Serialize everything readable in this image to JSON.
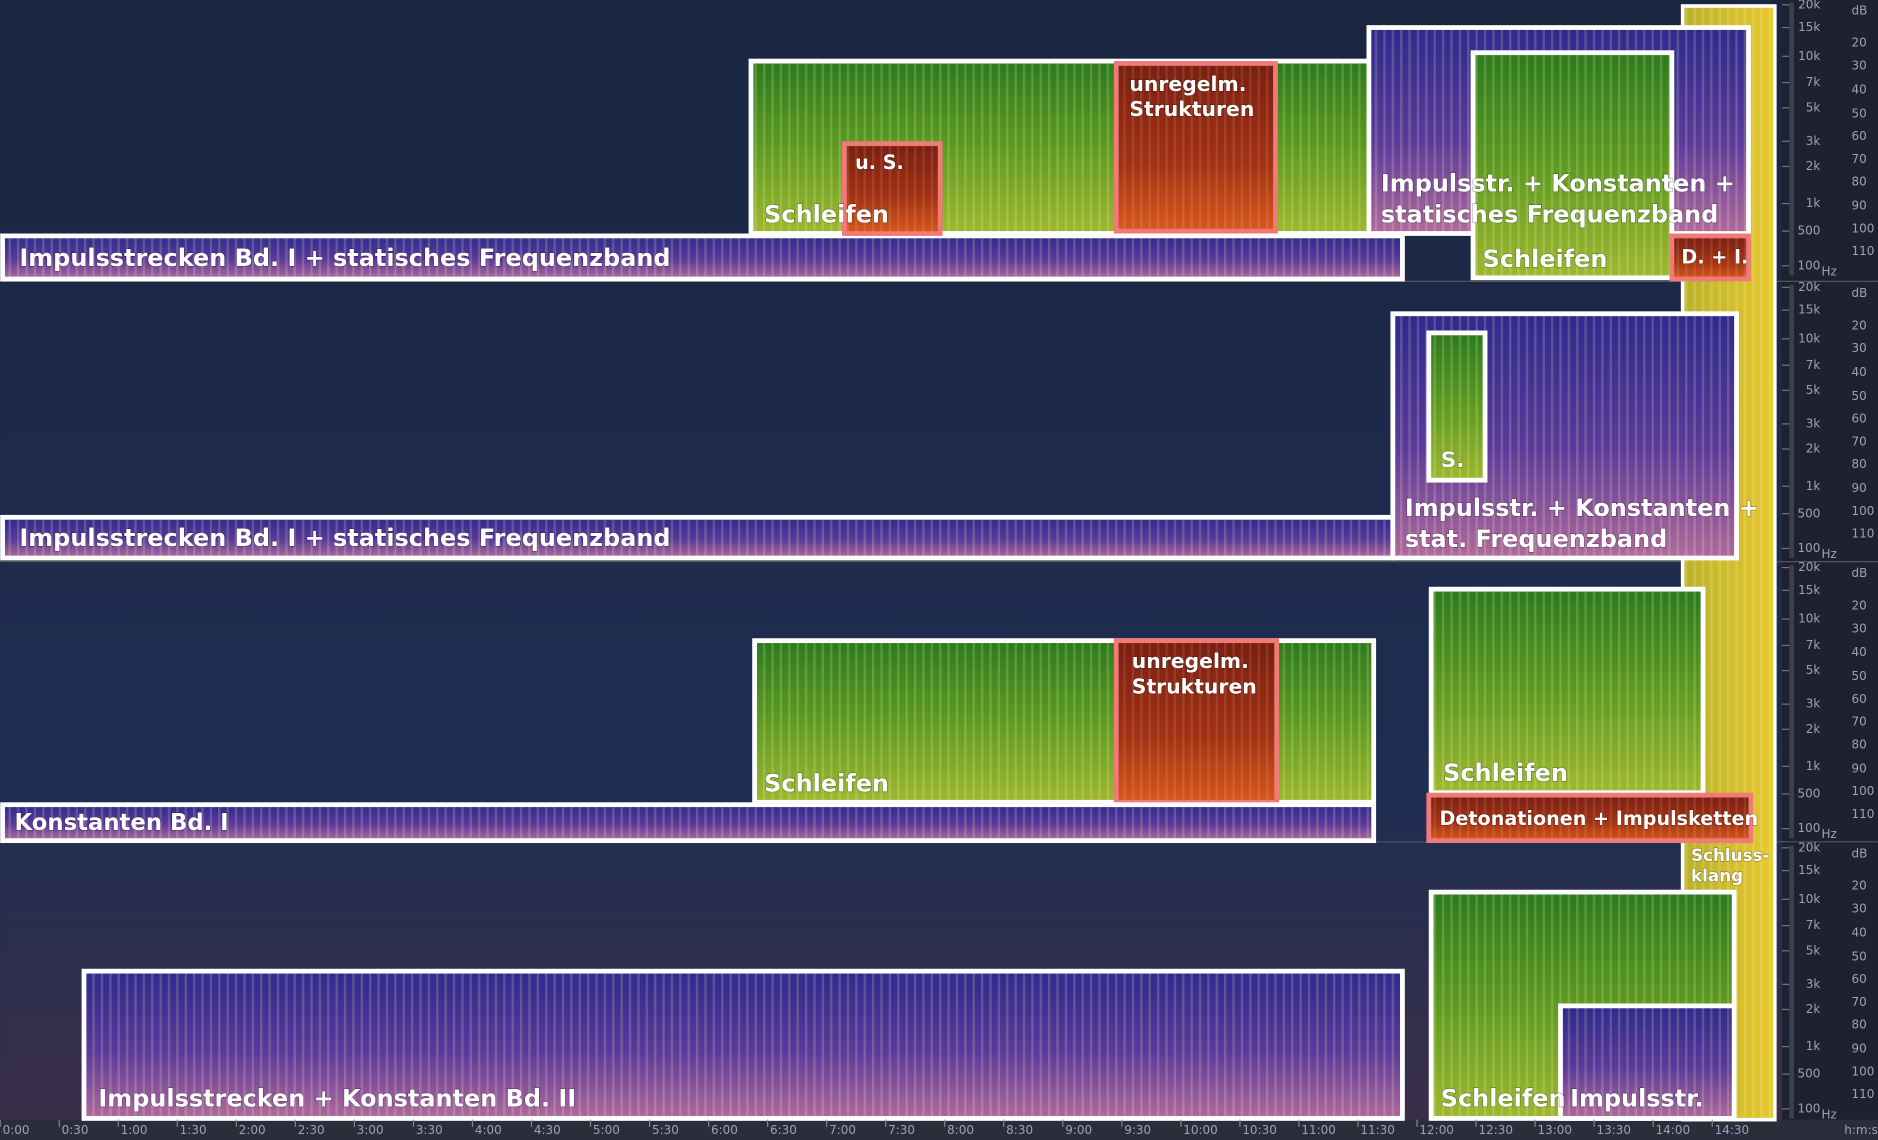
{
  "panels": [
    {
      "annotations": [
        {
          "lines": [
            "Impulsstrecken Bd. I + statisches Frequenzband"
          ]
        },
        {
          "lines": [
            "Schleifen"
          ]
        },
        {
          "lines": [
            "u. S."
          ]
        },
        {
          "lines": [
            "unregelm.",
            "Strukturen"
          ]
        },
        {
          "lines": [
            "Impulsstr. + Konstanten +",
            "statisches Frequenzband"
          ]
        },
        {
          "lines": [
            "Schleifen"
          ]
        },
        {
          "lines": [
            "D. + I."
          ]
        }
      ]
    },
    {
      "annotations": [
        {
          "lines": [
            "Impulsstrecken Bd. I + statisches Frequenzband"
          ]
        },
        {
          "lines": [
            "Impulsstr. + Konstanten +",
            "stat. Frequenzband"
          ]
        },
        {
          "lines": [
            "S."
          ]
        }
      ]
    },
    {
      "annotations": [
        {
          "lines": [
            "Schleifen"
          ]
        },
        {
          "lines": [
            "unregelm.",
            "Strukturen"
          ]
        },
        {
          "lines": [
            "Konstanten Bd. I"
          ]
        },
        {
          "lines": [
            "Schleifen"
          ]
        },
        {
          "lines": [
            "Detonationen + Impulsketten"
          ]
        }
      ]
    },
    {
      "annotations": [
        {
          "lines": [
            "Impulsstrecken + Konstanten Bd. II"
          ]
        },
        {
          "lines": [
            "Schleifen"
          ]
        },
        {
          "lines": [
            "Impulsstr."
          ]
        }
      ]
    }
  ],
  "closing": {
    "lines": [
      "Schluss-",
      "klang"
    ]
  },
  "frequency_scale": {
    "labels": [
      "20k",
      "15k",
      "10k",
      "7k",
      "5k",
      "3k",
      "2k",
      "1k",
      "500",
      "100"
    ],
    "unit": "Hz"
  },
  "db_scale": {
    "unit": "dB",
    "labels": [
      "20",
      "30",
      "40",
      "50",
      "60",
      "70",
      "80",
      "90",
      "100",
      "110"
    ]
  },
  "time_axis": {
    "labels": [
      "0:00",
      "0:30",
      "1:00",
      "1:30",
      "2:00",
      "2:30",
      "3:00",
      "3:30",
      "4:00",
      "4:30",
      "5:00",
      "5:30",
      "6:00",
      "6:30",
      "7:00",
      "7:30",
      "8:00",
      "8:30",
      "9:00",
      "9:30",
      "10:00",
      "10:30",
      "11:00",
      "11:30",
      "12:00",
      "12:30",
      "13:00",
      "13:30",
      "14:00",
      "14:30"
    ],
    "unit": "h:m:s"
  }
}
